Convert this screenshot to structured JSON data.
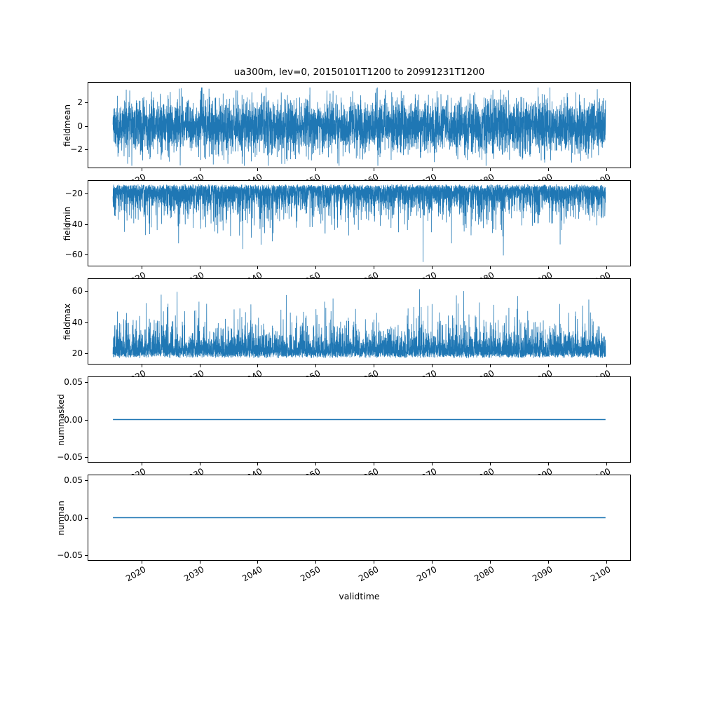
{
  "figure": {
    "title": "ua300m, lev=0, 20150101T1200 to 20991231T1200",
    "xlabel": "validtime",
    "line_color": "#1f77b4",
    "background_color": "#ffffff",
    "xlim": [
      2010.75,
      2104.25
    ],
    "x_start": 2015.0,
    "x_end": 2099.99,
    "xticks": [
      {
        "v": 2020,
        "label": "2020"
      },
      {
        "v": 2030,
        "label": "2030"
      },
      {
        "v": 2040,
        "label": "2040"
      },
      {
        "v": 2050,
        "label": "2050"
      },
      {
        "v": 2060,
        "label": "2060"
      },
      {
        "v": 2070,
        "label": "2070"
      },
      {
        "v": 2080,
        "label": "2080"
      },
      {
        "v": 2090,
        "label": "2090"
      },
      {
        "v": 2100,
        "label": "2100"
      }
    ]
  },
  "chart_data": [
    {
      "type": "line",
      "ylabel": "fieldmean",
      "ylim": [
        -3.6,
        3.76
      ],
      "yticks": [
        {
          "v": 2,
          "label": "2"
        },
        {
          "v": 0,
          "label": "0"
        },
        {
          "v": -2,
          "label": "−2"
        }
      ],
      "summary": "dense noisy series oscillating about 0; typical band −2..2, extremes about ±3.4",
      "gen": {
        "kind": "gauss",
        "mean": 0,
        "std": 1.15,
        "clip": [
          -3.45,
          3.35
        ],
        "n": 5200,
        "seed": 11
      }
    },
    {
      "type": "line",
      "ylabel": "fieldmin",
      "ylim": [
        -68,
        -11
      ],
      "yticks": [
        {
          "v": -20,
          "label": "−20"
        },
        {
          "v": -40,
          "label": "−40"
        },
        {
          "v": -60,
          "label": "−60"
        }
      ],
      "summary": "dense band −13..−30 with frequent downward spikes to −50 and rare spikes to about −65",
      "gen": {
        "kind": "negspike",
        "base": -13.2,
        "exp_scale": 6.0,
        "gauss_scale": 1.4,
        "clip_min": -65.5,
        "n": 5200,
        "seed": 22
      }
    },
    {
      "type": "line",
      "ylabel": "fieldmax",
      "ylim": [
        13,
        68
      ],
      "yticks": [
        {
          "v": 60,
          "label": "60"
        },
        {
          "v": 40,
          "label": "40"
        },
        {
          "v": 20,
          "label": "20"
        }
      ],
      "summary": "dense band 17..35 with frequent upward spikes to 50 and rare spikes to about 66",
      "gen": {
        "kind": "posspike",
        "base": 16.6,
        "exp_scale": 5.8,
        "gauss_scale": 1.4,
        "clip_max": 66,
        "n": 5200,
        "seed": 33
      }
    },
    {
      "type": "line",
      "ylabel": "nummasked",
      "ylim": [
        -0.0575,
        0.0575
      ],
      "yticks": [
        {
          "v": 0.05,
          "label": "0.05"
        },
        {
          "v": 0,
          "label": "0.00"
        },
        {
          "v": -0.05,
          "label": "−0.05"
        }
      ],
      "summary": "constant 0.00 across the full period",
      "gen": {
        "kind": "const",
        "value": 0
      }
    },
    {
      "type": "line",
      "ylabel": "numnan",
      "ylim": [
        -0.0575,
        0.0575
      ],
      "yticks": [
        {
          "v": 0.05,
          "label": "0.05"
        },
        {
          "v": 0,
          "label": "0.00"
        },
        {
          "v": -0.05,
          "label": "−0.05"
        }
      ],
      "summary": "constant 0.00 across the full period",
      "gen": {
        "kind": "const",
        "value": 0
      }
    }
  ]
}
